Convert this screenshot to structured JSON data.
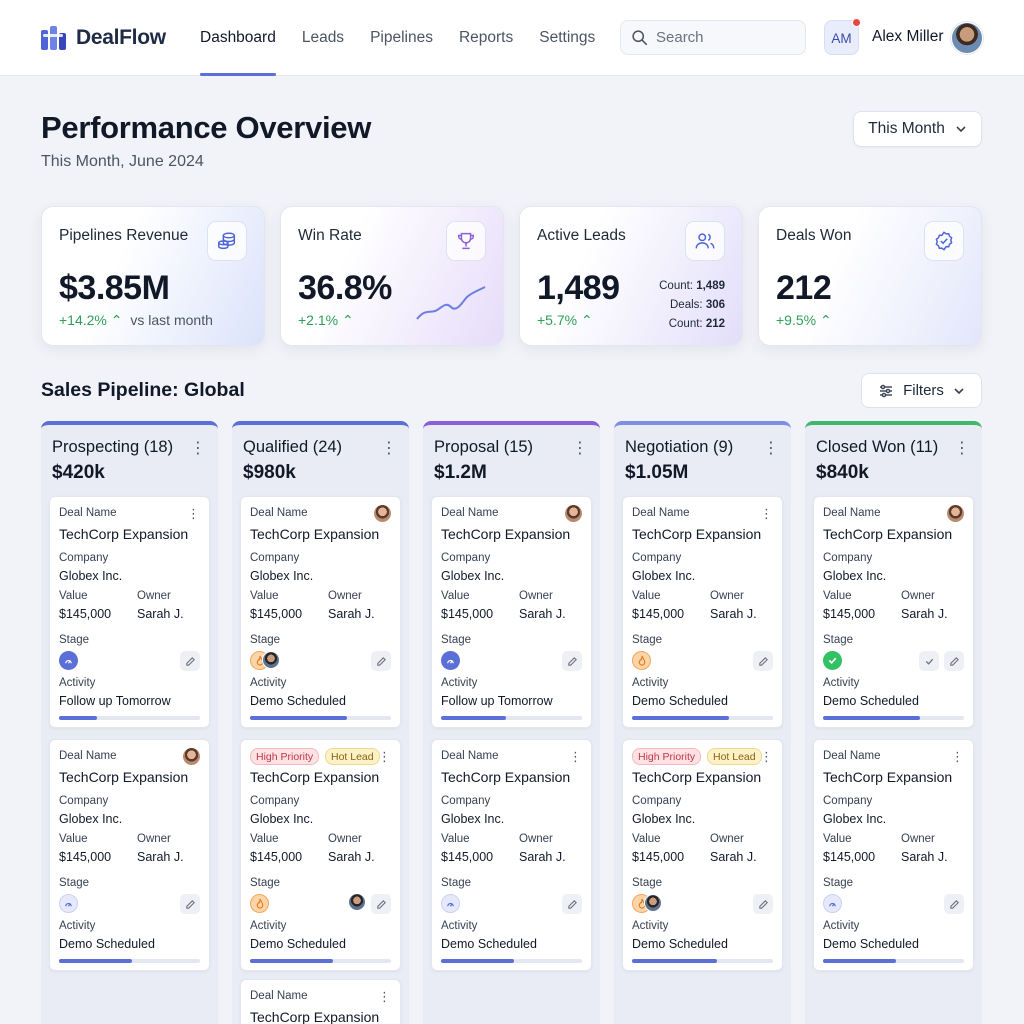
{
  "app": {
    "name": "DealFlow"
  },
  "nav": {
    "items": [
      "Dashboard",
      "Leads",
      "Pipelines",
      "Reports",
      "Settings"
    ],
    "active": "Dashboard"
  },
  "search": {
    "placeholder": "Search"
  },
  "user": {
    "initials": "AM",
    "name": "Alex Miller"
  },
  "page": {
    "title": "Performance Overview",
    "subtitle": "This Month, June 2024",
    "period_button": "This Month"
  },
  "kpis": [
    {
      "label": "Pipelines Revenue",
      "value": "$3.85M",
      "delta": "+14.2%",
      "delta_suffix": "vs last month",
      "icon": "coins-icon"
    },
    {
      "label": "Win Rate",
      "value": "36.8%",
      "delta": "+2.1%",
      "icon": "trophy-icon"
    },
    {
      "label": "Active Leads",
      "value": "1,489",
      "delta": "+5.7%",
      "icon": "users-icon",
      "mini": [
        {
          "label": "Count:",
          "value": "1,489"
        },
        {
          "label": "Deals:",
          "value": "306"
        },
        {
          "label": "Count:",
          "value": "212"
        }
      ]
    },
    {
      "label": "Deals Won",
      "value": "212",
      "delta": "+9.5%",
      "icon": "badge-check-icon"
    }
  ],
  "pipeline": {
    "title": "Sales Pipeline: Global",
    "filters_label": "Filters",
    "columns": [
      {
        "title": "Prospecting (18)",
        "total": "$420k",
        "accent": "#5b6fd8"
      },
      {
        "title": "Qualified (24)",
        "total": "$980k",
        "accent": "#5b6fd8"
      },
      {
        "title": "Proposal (15)",
        "total": "$1.2M",
        "accent": "#8b5fd6"
      },
      {
        "title": "Negotiation (9)",
        "total": "$1.05M",
        "accent": "#7d8fe0"
      },
      {
        "title": "Closed Won (11)",
        "total": "$840k",
        "accent": "#3fb86a"
      }
    ],
    "card_labels": {
      "deal_name": "Deal Name",
      "company": "Company",
      "value": "Value",
      "owner": "Owner",
      "stage": "Stage",
      "activity": "Activity"
    },
    "card": {
      "title": "TechCorp Expansion",
      "company": "Globex Inc.",
      "value": "$145,000",
      "owner": "Sarah J."
    },
    "tags": {
      "high": "High Priority",
      "hot": "Hot Lead"
    },
    "activities": {
      "c0a": "Follow up Tomorrow",
      "c0b": "Demo Scheduled",
      "c1a": "Demo Scheduled",
      "c1b": "Demo Scheduled",
      "c2a": "Follow up Tomorrow",
      "c2b": "Demo Scheduled",
      "c3a": "Demo Scheduled",
      "c3b": "Demo Scheduled",
      "c4a": "Demo Scheduled",
      "c4b": "Demo Scheduled"
    },
    "progress": {
      "c0a": 0.27,
      "c0b": 0.52,
      "c1a": 0.69,
      "c1b": 0.59,
      "c2a": 0.46,
      "c2b": 0.52,
      "c3a": 0.69,
      "c3b": 0.6,
      "c4a": 0.69,
      "c4b": 0.52
    }
  },
  "colors": {
    "accent": "#5b6fd8",
    "positive": "#2f9e58",
    "success": "#34c065"
  }
}
